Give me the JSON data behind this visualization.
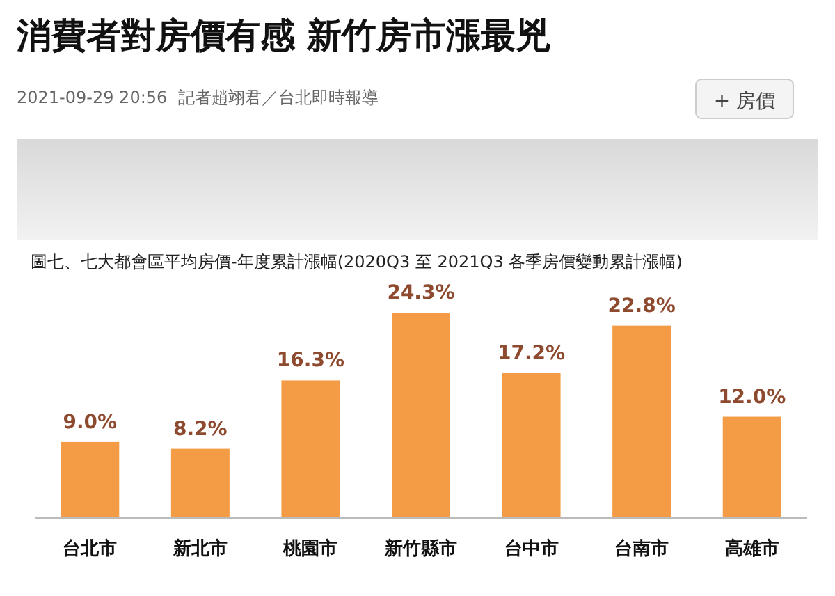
{
  "chart_data": {
    "type": "bar",
    "title": "消費者對房價有感 新竹房市漲最兇",
    "subtitle": "圖七、七大都會區平均房價-年度累計漲幅(2020Q3 至 2021Q3 各季房價變動累計漲幅)",
    "annotations": [
      "2021-09-29 20:56",
      "記者趙翊君／台北即時報導",
      "+ 房價"
    ],
    "categories": [
      "台北市",
      "新北市",
      "桃園市",
      "新竹縣市",
      "台中市",
      "台南市",
      "高雄市"
    ],
    "values": [
      9.0,
      8.2,
      16.3,
      24.3,
      17.2,
      22.8,
      12.0
    ],
    "value_labels": [
      "9.0%",
      "8.2%",
      "16.3%",
      "24.3%",
      "17.2%",
      "22.8%",
      "12.0%"
    ],
    "color": "#f49b45"
  }
}
